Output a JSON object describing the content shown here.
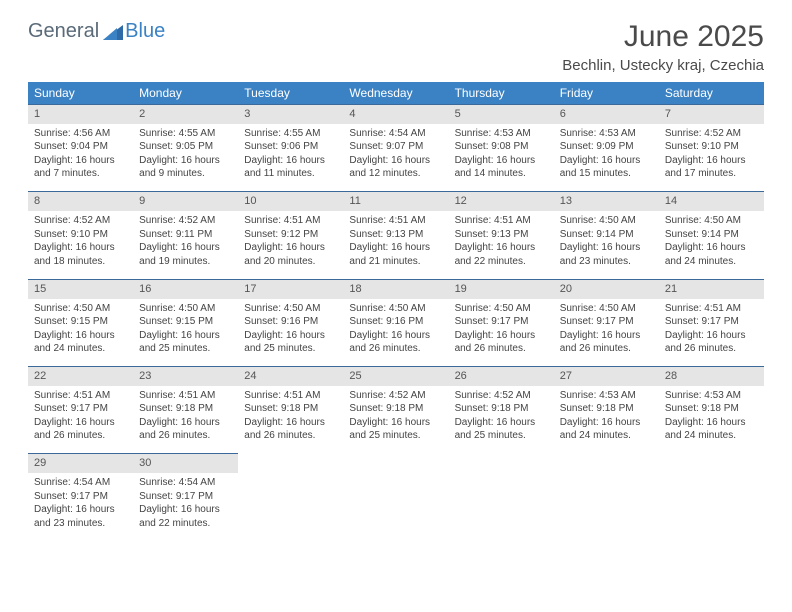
{
  "logo": {
    "word1": "General",
    "word2": "Blue"
  },
  "title": "June 2025",
  "location": "Bechlin, Ustecky kraj, Czechia",
  "colors": {
    "header_bg": "#3b82c4",
    "header_text": "#ffffff",
    "daynum_bg": "#e5e5e5",
    "row_border": "#3b6a9a",
    "body_text": "#444444",
    "title_text": "#4a4a4a",
    "logo_gray": "#5a6a78",
    "logo_blue": "#3b82c4"
  },
  "dayHeaders": [
    "Sunday",
    "Monday",
    "Tuesday",
    "Wednesday",
    "Thursday",
    "Friday",
    "Saturday"
  ],
  "weeks": [
    [
      {
        "n": "1",
        "sr": "4:56 AM",
        "ss": "9:04 PM",
        "dl": "16 hours and 7 minutes."
      },
      {
        "n": "2",
        "sr": "4:55 AM",
        "ss": "9:05 PM",
        "dl": "16 hours and 9 minutes."
      },
      {
        "n": "3",
        "sr": "4:55 AM",
        "ss": "9:06 PM",
        "dl": "16 hours and 11 minutes."
      },
      {
        "n": "4",
        "sr": "4:54 AM",
        "ss": "9:07 PM",
        "dl": "16 hours and 12 minutes."
      },
      {
        "n": "5",
        "sr": "4:53 AM",
        "ss": "9:08 PM",
        "dl": "16 hours and 14 minutes."
      },
      {
        "n": "6",
        "sr": "4:53 AM",
        "ss": "9:09 PM",
        "dl": "16 hours and 15 minutes."
      },
      {
        "n": "7",
        "sr": "4:52 AM",
        "ss": "9:10 PM",
        "dl": "16 hours and 17 minutes."
      }
    ],
    [
      {
        "n": "8",
        "sr": "4:52 AM",
        "ss": "9:10 PM",
        "dl": "16 hours and 18 minutes."
      },
      {
        "n": "9",
        "sr": "4:52 AM",
        "ss": "9:11 PM",
        "dl": "16 hours and 19 minutes."
      },
      {
        "n": "10",
        "sr": "4:51 AM",
        "ss": "9:12 PM",
        "dl": "16 hours and 20 minutes."
      },
      {
        "n": "11",
        "sr": "4:51 AM",
        "ss": "9:13 PM",
        "dl": "16 hours and 21 minutes."
      },
      {
        "n": "12",
        "sr": "4:51 AM",
        "ss": "9:13 PM",
        "dl": "16 hours and 22 minutes."
      },
      {
        "n": "13",
        "sr": "4:50 AM",
        "ss": "9:14 PM",
        "dl": "16 hours and 23 minutes."
      },
      {
        "n": "14",
        "sr": "4:50 AM",
        "ss": "9:14 PM",
        "dl": "16 hours and 24 minutes."
      }
    ],
    [
      {
        "n": "15",
        "sr": "4:50 AM",
        "ss": "9:15 PM",
        "dl": "16 hours and 24 minutes."
      },
      {
        "n": "16",
        "sr": "4:50 AM",
        "ss": "9:15 PM",
        "dl": "16 hours and 25 minutes."
      },
      {
        "n": "17",
        "sr": "4:50 AM",
        "ss": "9:16 PM",
        "dl": "16 hours and 25 minutes."
      },
      {
        "n": "18",
        "sr": "4:50 AM",
        "ss": "9:16 PM",
        "dl": "16 hours and 26 minutes."
      },
      {
        "n": "19",
        "sr": "4:50 AM",
        "ss": "9:17 PM",
        "dl": "16 hours and 26 minutes."
      },
      {
        "n": "20",
        "sr": "4:50 AM",
        "ss": "9:17 PM",
        "dl": "16 hours and 26 minutes."
      },
      {
        "n": "21",
        "sr": "4:51 AM",
        "ss": "9:17 PM",
        "dl": "16 hours and 26 minutes."
      }
    ],
    [
      {
        "n": "22",
        "sr": "4:51 AM",
        "ss": "9:17 PM",
        "dl": "16 hours and 26 minutes."
      },
      {
        "n": "23",
        "sr": "4:51 AM",
        "ss": "9:18 PM",
        "dl": "16 hours and 26 minutes."
      },
      {
        "n": "24",
        "sr": "4:51 AM",
        "ss": "9:18 PM",
        "dl": "16 hours and 26 minutes."
      },
      {
        "n": "25",
        "sr": "4:52 AM",
        "ss": "9:18 PM",
        "dl": "16 hours and 25 minutes."
      },
      {
        "n": "26",
        "sr": "4:52 AM",
        "ss": "9:18 PM",
        "dl": "16 hours and 25 minutes."
      },
      {
        "n": "27",
        "sr": "4:53 AM",
        "ss": "9:18 PM",
        "dl": "16 hours and 24 minutes."
      },
      {
        "n": "28",
        "sr": "4:53 AM",
        "ss": "9:18 PM",
        "dl": "16 hours and 24 minutes."
      }
    ],
    [
      {
        "n": "29",
        "sr": "4:54 AM",
        "ss": "9:17 PM",
        "dl": "16 hours and 23 minutes."
      },
      {
        "n": "30",
        "sr": "4:54 AM",
        "ss": "9:17 PM",
        "dl": "16 hours and 22 minutes."
      },
      null,
      null,
      null,
      null,
      null
    ]
  ],
  "labels": {
    "sunrise": "Sunrise: ",
    "sunset": "Sunset: ",
    "daylight": "Daylight: "
  }
}
